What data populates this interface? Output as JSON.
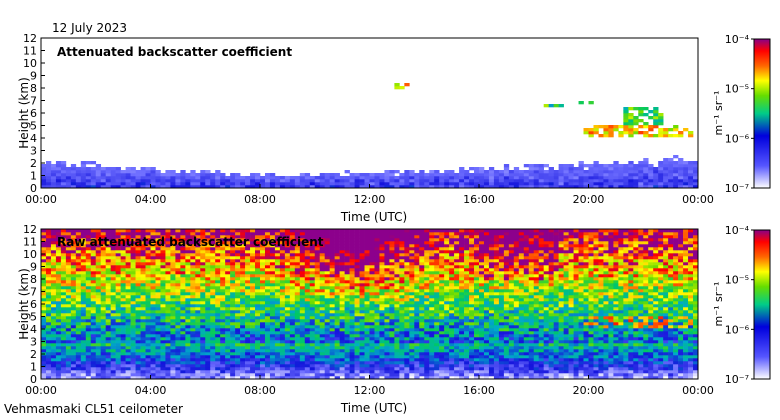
{
  "date": "12 July 2023",
  "footer": "Vehmasmaki CL51 ceilometer",
  "chart_data": [
    {
      "type": "heatmap",
      "title": "Attenuated backscatter coefficient",
      "xlabel": "Time (UTC)",
      "ylabel": "Height (km)",
      "xlim": [
        0,
        24
      ],
      "ylim": [
        0,
        12
      ],
      "x_ticks": [
        0,
        4,
        8,
        12,
        16,
        20,
        24
      ],
      "x_tick_labels": [
        "00:00",
        "04:00",
        "08:00",
        "12:00",
        "16:00",
        "20:00",
        "00:00"
      ],
      "y_ticks": [
        0,
        1,
        2,
        3,
        4,
        5,
        6,
        7,
        8,
        9,
        10,
        11,
        12
      ],
      "y_tick_labels": [
        "0",
        "1",
        "2",
        "3",
        "4",
        "5",
        "6",
        "7",
        "8",
        "9",
        "10",
        "11",
        "12"
      ],
      "colorbar": {
        "unit": "m⁻¹ sr⁻¹",
        "scale": "log",
        "range": [
          1e-07,
          0.0001
        ],
        "tick_labels": [
          "10⁻⁴",
          "10⁻⁵",
          "10⁻⁶",
          "10⁻⁷"
        ]
      },
      "features": [
        {
          "name": "boundary layer aerosol",
          "time": [
            0,
            24
          ],
          "height_top_km": [
            2.0,
            1.0,
            1.5,
            2.2
          ],
          "level": "low"
        },
        {
          "name": "cloud layer",
          "time": [
            13.0,
            13.5
          ],
          "height_km": 8.2,
          "level": "high"
        },
        {
          "name": "cloud layer",
          "time": [
            18.3,
            19.0
          ],
          "height_km": 6.6,
          "level": "mid-high"
        },
        {
          "name": "cloud layer",
          "time": [
            19.7,
            20.2
          ],
          "height_km": 6.8,
          "level": "mid-high"
        },
        {
          "name": "cloud layer",
          "time": [
            19.9,
            23.9
          ],
          "height_km": [
            4.0,
            5.0
          ],
          "level": "high"
        },
        {
          "name": "cloud layer",
          "time": [
            21.3,
            22.8
          ],
          "height_km": [
            5.0,
            6.5
          ],
          "level": "mid-high"
        }
      ]
    },
    {
      "type": "heatmap",
      "title": "Raw attenuated backscatter coefficient",
      "xlabel": "Time (UTC)",
      "ylabel": "Height (km)",
      "xlim": [
        0,
        24
      ],
      "ylim": [
        0,
        12
      ],
      "x_ticks": [
        0,
        4,
        8,
        12,
        16,
        20,
        24
      ],
      "x_tick_labels": [
        "00:00",
        "04:00",
        "08:00",
        "12:00",
        "16:00",
        "20:00",
        "00:00"
      ],
      "y_ticks": [
        0,
        1,
        2,
        3,
        4,
        5,
        6,
        7,
        8,
        9,
        10,
        11,
        12
      ],
      "y_tick_labels": [
        "0",
        "1",
        "2",
        "3",
        "4",
        "5",
        "6",
        "7",
        "8",
        "9",
        "10",
        "11",
        "12"
      ],
      "colorbar": {
        "unit": "m⁻¹ sr⁻¹",
        "scale": "log",
        "range": [
          1e-07,
          0.0001
        ],
        "tick_labels": [
          "10⁻⁴",
          "10⁻⁵",
          "10⁻⁶",
          "10⁻⁷"
        ]
      },
      "features": [
        {
          "name": "noise peak",
          "time": [
            9.5,
            13.5
          ],
          "height_km": [
            6,
            12
          ],
          "level": "high"
        },
        {
          "name": "noise",
          "time": [
            0,
            24
          ],
          "height_km": [
            3,
            12
          ],
          "level": "mid"
        },
        {
          "name": "clean boundary layer",
          "time": [
            0,
            24
          ],
          "height_km": [
            0,
            3
          ],
          "level": "low"
        },
        {
          "name": "cloud layer",
          "time": [
            19.9,
            23.9
          ],
          "height_km": [
            4.0,
            5.0
          ],
          "level": "high"
        }
      ]
    }
  ]
}
